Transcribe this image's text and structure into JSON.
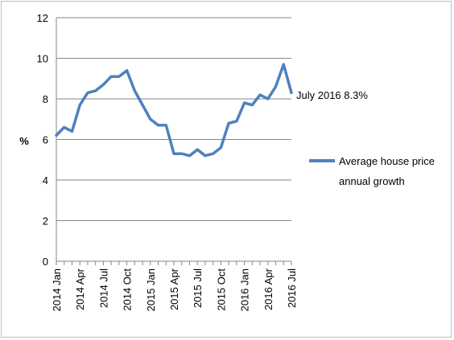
{
  "chart_data": {
    "type": "line",
    "title": "",
    "xlabel": "",
    "ylabel": "%",
    "ylim": [
      0,
      12
    ],
    "yticks": [
      "0",
      "2",
      "4",
      "6",
      "8",
      "10",
      "12"
    ],
    "grid": "horizontal",
    "legend_position": "right",
    "x_tick_labels": [
      "2014 Jan",
      "2014 Apr",
      "2014 Jul",
      "2014 Oct",
      "2015 Jan",
      "2015 Apr",
      "2015 Jul",
      "2015 Oct",
      "2016 Jan",
      "2016 Apr",
      "2016 Jul"
    ],
    "x": [
      "2014 Jan",
      "2014 Feb",
      "2014 Mar",
      "2014 Apr",
      "2014 May",
      "2014 Jun",
      "2014 Jul",
      "2014 Aug",
      "2014 Sep",
      "2014 Oct",
      "2014 Nov",
      "2014 Dec",
      "2015 Jan",
      "2015 Feb",
      "2015 Mar",
      "2015 Apr",
      "2015 May",
      "2015 Jun",
      "2015 Jul",
      "2015 Aug",
      "2015 Sep",
      "2015 Oct",
      "2015 Nov",
      "2015 Dec",
      "2016 Jan",
      "2016 Feb",
      "2016 Mar",
      "2016 Apr",
      "2016 May",
      "2016 Jun",
      "2016 Jul"
    ],
    "series": [
      {
        "name": "Average house price annual growth",
        "color": "#4f81bd",
        "values": [
          6.2,
          6.6,
          6.4,
          7.7,
          8.3,
          8.4,
          8.7,
          9.1,
          9.1,
          9.4,
          8.4,
          7.7,
          7.0,
          6.7,
          6.7,
          5.3,
          5.3,
          5.2,
          5.5,
          5.2,
          5.3,
          5.6,
          6.8,
          6.9,
          7.8,
          7.7,
          8.2,
          8.0,
          8.6,
          9.7,
          8.3
        ]
      }
    ],
    "annotations": [
      {
        "text": "July 2016 8.3%"
      }
    ]
  }
}
